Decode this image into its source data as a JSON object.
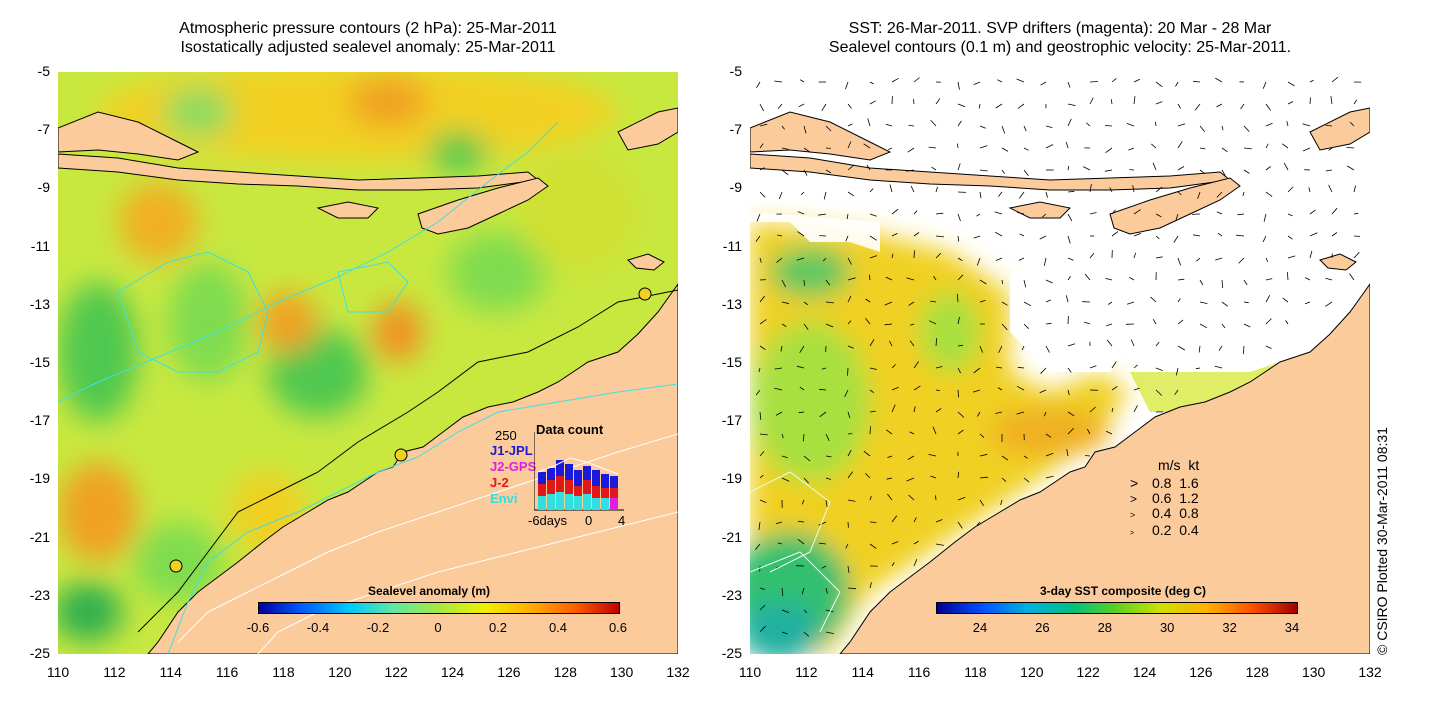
{
  "left": {
    "title_line1": "Atmospheric pressure contours (2 hPa): 25-Mar-2011",
    "title_line2": "Isostatically adjusted sealevel anomaly: 25-Mar-2011",
    "colorbar_title": "Sealevel anomaly (m)",
    "colorbar_ticks": [
      "-0.6",
      "-0.4",
      "-0.2",
      "0",
      "0.2",
      "0.4",
      "0.6"
    ],
    "inset": {
      "title": "Data count",
      "max_label": "250",
      "satellites": [
        {
          "name": "J1-JPL",
          "color": "#1a1ad8"
        },
        {
          "name": "J2-GPS",
          "color": "#e020e0"
        },
        {
          "name": "J-2",
          "color": "#e01818"
        },
        {
          "name": "Envi",
          "color": "#30e0e0"
        }
      ],
      "x_ticks": [
        "-6days",
        "0",
        "4"
      ]
    }
  },
  "right": {
    "title_line1": "SST: 26-Mar-2011. SVP drifters (magenta): 20 Mar - 28 Mar",
    "title_line2": "Sealevel contours (0.1 m) and geostrophic velocity: 25-Mar-2011.",
    "colorbar_title": "3-day SST composite (deg C)",
    "colorbar_ticks": [
      "24",
      "26",
      "28",
      "30",
      "32",
      "34"
    ],
    "speed_legend": {
      "header_ms": "m/s",
      "header_kt": "kt",
      "rows": [
        {
          "ms": "0.8",
          "kt": "1.6"
        },
        {
          "ms": "0.6",
          "kt": "1.2"
        },
        {
          "ms": "0.4",
          "kt": "0.8"
        },
        {
          "ms": "0.2",
          "kt": "0.4"
        }
      ]
    }
  },
  "axes": {
    "x_ticks": [
      "110",
      "112",
      "114",
      "116",
      "118",
      "120",
      "122",
      "124",
      "126",
      "128",
      "130",
      "132"
    ],
    "y_ticks": [
      "-5",
      "-7",
      "-9",
      "-11",
      "-13",
      "-15",
      "-17",
      "-19",
      "-21",
      "-23",
      "-25"
    ]
  },
  "credit": "© CSIRO Plotted 30-Mar-2011 08:31",
  "colors": {
    "land": "#fccb9c",
    "sla_scale": [
      "#0000a0",
      "#0060ff",
      "#00c8ff",
      "#60e8a0",
      "#a8e840",
      "#f0f000",
      "#ffb000",
      "#ff6000",
      "#c00000"
    ],
    "sst_scale": [
      "#000090",
      "#0050ff",
      "#00b0e0",
      "#00c080",
      "#60d020",
      "#d0e000",
      "#ffb000",
      "#ff5000",
      "#a00000"
    ]
  }
}
